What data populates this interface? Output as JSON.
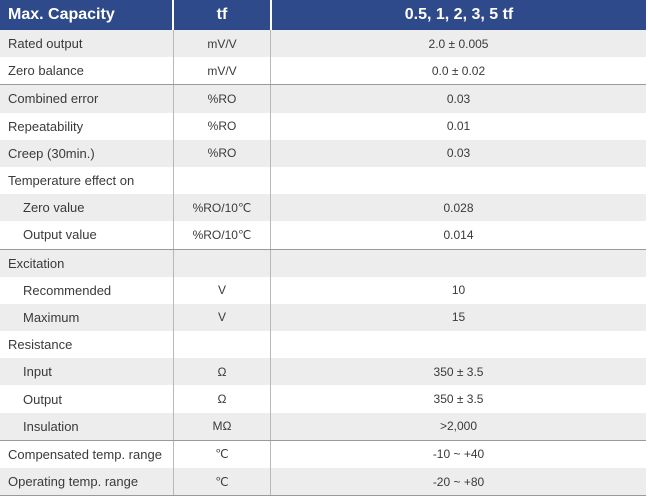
{
  "header": {
    "label": "Max. Capacity",
    "unit": "tf",
    "value": "0.5, 1, 2, 3, 5 tf"
  },
  "groups": [
    {
      "rows": [
        {
          "label": "Rated output",
          "unit": "mV/V",
          "value": "2.0 ± 0.005"
        },
        {
          "label": "Zero balance",
          "unit": "mV/V",
          "value": "0.0 ± 0.02"
        }
      ]
    },
    {
      "rows": [
        {
          "label": "Combined error",
          "unit": "%RO",
          "value": "0.03"
        },
        {
          "label": "Repeatability",
          "unit": "%RO",
          "value": "0.01"
        },
        {
          "label": "Creep (30min.)",
          "unit": "%RO",
          "value": "0.03"
        },
        {
          "label": "Temperature effect on",
          "unit": "",
          "value": ""
        },
        {
          "label": "Zero value",
          "unit": "%RO/10℃",
          "value": "0.028",
          "indent": true
        },
        {
          "label": "Output  value",
          "unit": "%RO/10℃",
          "value": "0.014",
          "indent": true
        }
      ]
    },
    {
      "rows": [
        {
          "label": "Excitation",
          "unit": "",
          "value": ""
        },
        {
          "label": "Recommended",
          "unit": "V",
          "value": "10",
          "indent": true
        },
        {
          "label": "Maximum",
          "unit": "V",
          "value": "15",
          "indent": true
        },
        {
          "label": "Resistance",
          "unit": "",
          "value": ""
        },
        {
          "label": "Input",
          "unit": "Ω",
          "value": "350 ± 3.5",
          "indent": true
        },
        {
          "label": "Output",
          "unit": "Ω",
          "value": "350 ± 3.5",
          "indent": true
        },
        {
          "label": "Insulation",
          "unit": "MΩ",
          "value": ">2,000",
          "indent": true
        }
      ]
    },
    {
      "rows": [
        {
          "label": "Compensated temp. range",
          "unit": "℃",
          "value": "-10 ~ +40"
        },
        {
          "label": "Operating temp. range",
          "unit": "℃",
          "value": "-20 ~ +80"
        }
      ]
    }
  ],
  "colors": {
    "header_bg": "#2f4a8a",
    "stripe": "#ededed",
    "text": "#3a3a3a"
  }
}
